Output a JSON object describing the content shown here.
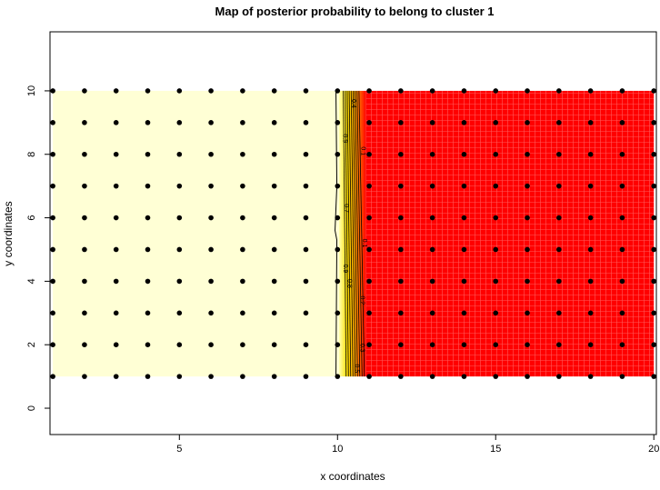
{
  "chart_data": {
    "type": "heatmap",
    "title": "Map of posterior probability to belong to cluster  1",
    "xlabel": "x coordinates",
    "ylabel": "y coordinates",
    "xlim": [
      0.91,
      20.08
    ],
    "ylim": [
      -0.83,
      11.86
    ],
    "xticks": [
      5,
      10,
      15,
      20
    ],
    "yticks": [
      0,
      2,
      4,
      6,
      8,
      10
    ],
    "grid": false,
    "points": {
      "x": [
        1,
        2,
        3,
        4,
        5,
        6,
        7,
        8,
        9,
        10,
        11,
        12,
        13,
        14,
        15,
        16,
        17,
        18,
        19,
        20
      ],
      "y": [
        1,
        2,
        3,
        4,
        5,
        6,
        7,
        8,
        9,
        10
      ]
    },
    "surface": {
      "x_range": [
        1,
        20
      ],
      "y_range": [
        1,
        10
      ],
      "high_value_region": "x <= 10",
      "low_value_region": "x >= 11",
      "high_value": 1.0,
      "low_value": 0.0
    },
    "contour_levels": [
      0.1,
      0.2,
      0.3,
      0.4,
      0.5,
      0.6,
      0.7,
      0.8,
      0.9,
      1.0
    ],
    "contour_labels": [
      {
        "text": "0.4",
        "x": 10.45,
        "y": 9.6
      },
      {
        "text": "0.9",
        "x": 10.18,
        "y": 8.5
      },
      {
        "text": "0.1",
        "x": 10.75,
        "y": 8.1
      },
      {
        "text": "0.7",
        "x": 10.22,
        "y": 6.3
      },
      {
        "text": "0.1",
        "x": 10.8,
        "y": 5.2
      },
      {
        "text": "0.9",
        "x": 10.2,
        "y": 4.4
      },
      {
        "text": "0.8",
        "x": 10.32,
        "y": 4.1
      },
      {
        "text": "0.2",
        "x": 10.72,
        "y": 3.4
      },
      {
        "text": "0.3",
        "x": 10.72,
        "y": 1.9
      },
      {
        "text": "0.5",
        "x": 10.55,
        "y": 1.25
      }
    ],
    "colors": {
      "high": "#FFFFD5",
      "low": "#FF0000",
      "mid": "#FFD700",
      "points": "#000000"
    }
  }
}
